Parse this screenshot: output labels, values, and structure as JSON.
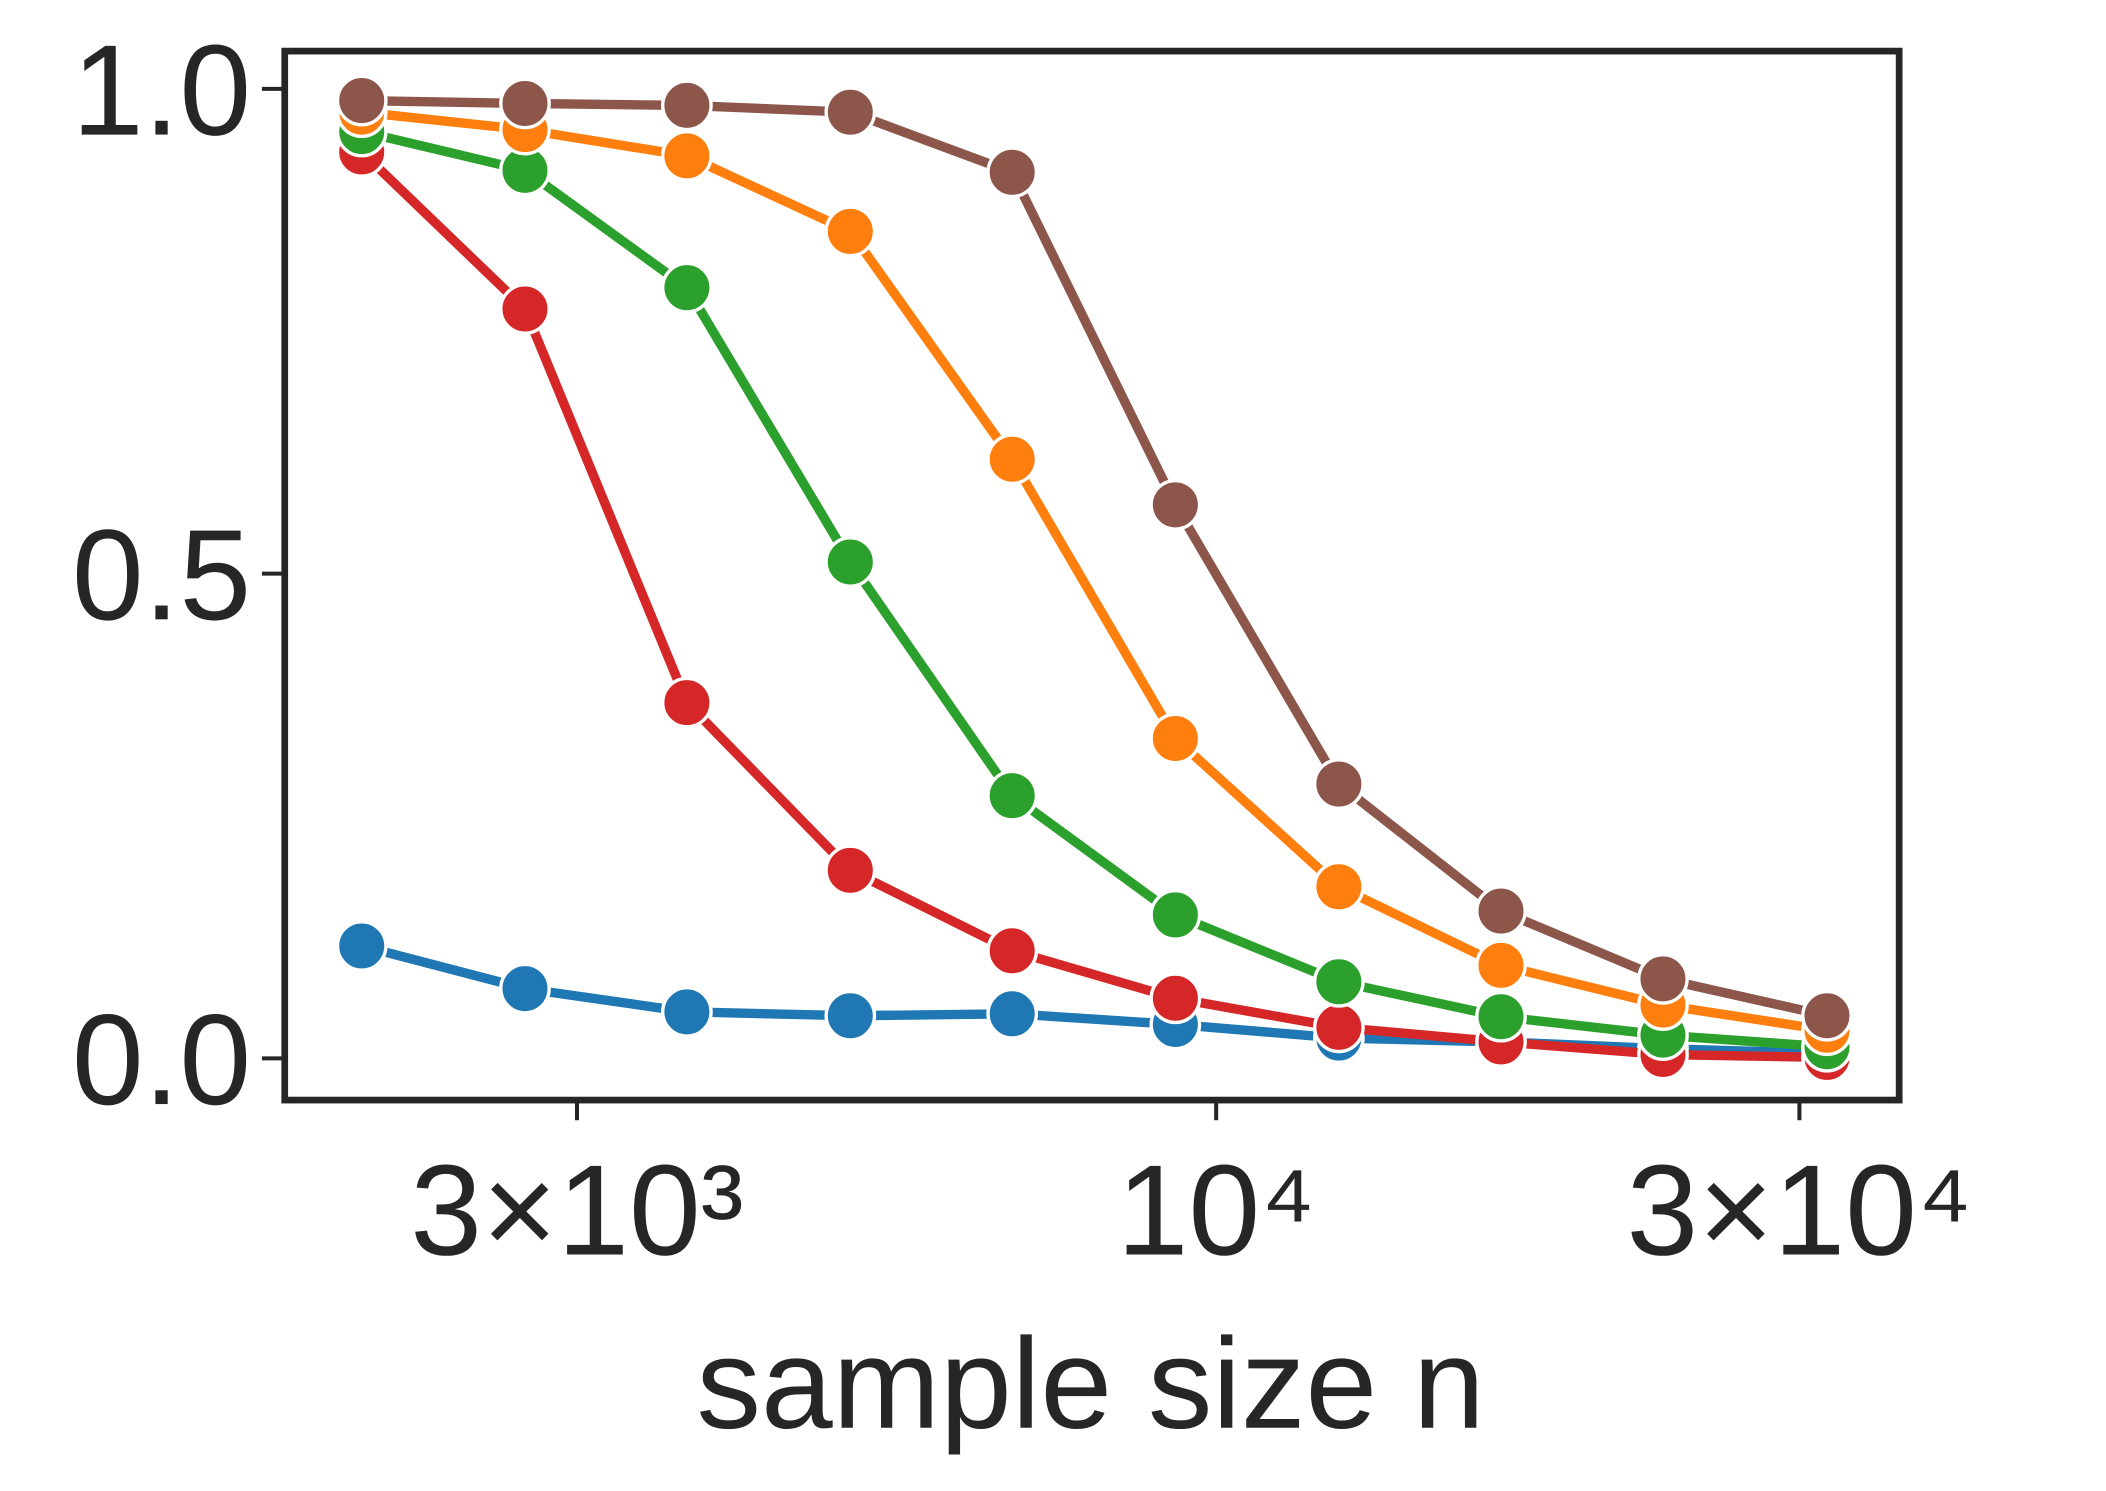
{
  "chart_data": {
    "type": "line",
    "x_label": "sample size n",
    "x": [
      2000,
      2720,
      3690,
      5020,
      6810,
      9260,
      12600,
      17100,
      23200,
      31600
    ],
    "xscale": "log",
    "xlim": [
      1730,
      36200
    ],
    "xticks": [
      {
        "value": 3000,
        "label": "3×10³"
      },
      {
        "value": 10000,
        "label": "10⁴"
      },
      {
        "value": 30000,
        "label": "3×10⁴"
      }
    ],
    "ylim": [
      -0.043,
      1.039
    ],
    "yticks": [
      {
        "value": 0,
        "label": "0.0"
      },
      {
        "value": 0.5,
        "label": "0.5"
      },
      {
        "value": 1,
        "label": "1.0"
      }
    ],
    "series": [
      {
        "color": "#1f77b4",
        "values": [
          0.116,
          0.072,
          0.048,
          0.044,
          0.046,
          0.035,
          0.021,
          0.017,
          0.01,
          0.005
        ]
      },
      {
        "color": "#d62728",
        "values": [
          0.935,
          0.773,
          0.367,
          0.194,
          0.111,
          0.062,
          0.032,
          0.017,
          0.004,
          0.001
        ]
      },
      {
        "color": "#2ca02c",
        "values": [
          0.956,
          0.916,
          0.795,
          0.512,
          0.271,
          0.148,
          0.079,
          0.043,
          0.024,
          0.012
        ]
      },
      {
        "color": "#ff7f0e",
        "values": [
          0.976,
          0.958,
          0.931,
          0.853,
          0.618,
          0.33,
          0.177,
          0.096,
          0.055,
          0.029
        ]
      },
      {
        "color": "#8c564b",
        "values": [
          0.988,
          0.985,
          0.983,
          0.976,
          0.914,
          0.571,
          0.283,
          0.152,
          0.082,
          0.044
        ]
      }
    ]
  }
}
